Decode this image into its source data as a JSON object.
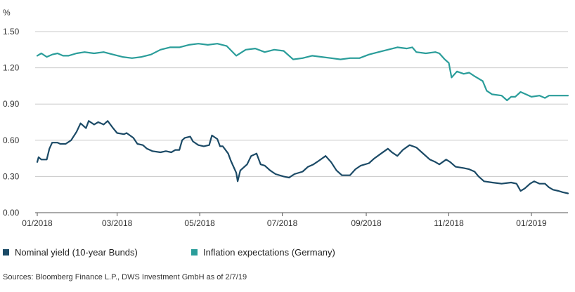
{
  "chart_data": {
    "type": "line",
    "unit_label": "%",
    "ylim": [
      0.0,
      1.5
    ],
    "y_ticks": [
      "0.00",
      "0.30",
      "0.60",
      "0.90",
      "1.20",
      "1.50"
    ],
    "y_tick_values": [
      0.0,
      0.3,
      0.6,
      0.9,
      1.2,
      1.5
    ],
    "xlim": [
      "2018-01-01",
      "2019-01-28"
    ],
    "x_ticks": [
      "01/2018",
      "03/2018",
      "05/2018",
      "07/2018",
      "09/2018",
      "11/2018",
      "01/2019"
    ],
    "x_tick_dates": [
      "2018-01-01",
      "2018-03-01",
      "2018-05-01",
      "2018-07-01",
      "2018-09-01",
      "2018-11-01",
      "2019-01-01"
    ],
    "grid": "horizontal",
    "legend_position": "bottom-left",
    "series": [
      {
        "name": "Nominal yield (10-year Bunds)",
        "color": "#1b4a66",
        "points": [
          [
            "2018-01-01",
            0.42
          ],
          [
            "2018-01-02",
            0.46
          ],
          [
            "2018-01-04",
            0.44
          ],
          [
            "2018-01-08",
            0.44
          ],
          [
            "2018-01-10",
            0.53
          ],
          [
            "2018-01-12",
            0.58
          ],
          [
            "2018-01-16",
            0.58
          ],
          [
            "2018-01-18",
            0.57
          ],
          [
            "2018-01-22",
            0.57
          ],
          [
            "2018-01-26",
            0.6
          ],
          [
            "2018-01-30",
            0.67
          ],
          [
            "2018-02-02",
            0.74
          ],
          [
            "2018-02-06",
            0.7
          ],
          [
            "2018-02-08",
            0.76
          ],
          [
            "2018-02-12",
            0.73
          ],
          [
            "2018-02-15",
            0.75
          ],
          [
            "2018-02-19",
            0.73
          ],
          [
            "2018-02-22",
            0.76
          ],
          [
            "2018-02-26",
            0.7
          ],
          [
            "2018-03-01",
            0.66
          ],
          [
            "2018-03-06",
            0.65
          ],
          [
            "2018-03-08",
            0.66
          ],
          [
            "2018-03-13",
            0.62
          ],
          [
            "2018-03-16",
            0.57
          ],
          [
            "2018-03-20",
            0.56
          ],
          [
            "2018-03-23",
            0.53
          ],
          [
            "2018-03-27",
            0.51
          ],
          [
            "2018-04-02",
            0.5
          ],
          [
            "2018-04-06",
            0.51
          ],
          [
            "2018-04-10",
            0.5
          ],
          [
            "2018-04-13",
            0.52
          ],
          [
            "2018-04-16",
            0.52
          ],
          [
            "2018-04-18",
            0.6
          ],
          [
            "2018-04-20",
            0.62
          ],
          [
            "2018-04-24",
            0.63
          ],
          [
            "2018-04-26",
            0.59
          ],
          [
            "2018-04-30",
            0.56
          ],
          [
            "2018-05-04",
            0.55
          ],
          [
            "2018-05-08",
            0.56
          ],
          [
            "2018-05-10",
            0.64
          ],
          [
            "2018-05-14",
            0.61
          ],
          [
            "2018-05-16",
            0.55
          ],
          [
            "2018-05-18",
            0.55
          ],
          [
            "2018-05-22",
            0.49
          ],
          [
            "2018-05-24",
            0.43
          ],
          [
            "2018-05-28",
            0.33
          ],
          [
            "2018-05-29",
            0.26
          ],
          [
            "2018-05-31",
            0.35
          ],
          [
            "2018-06-05",
            0.4
          ],
          [
            "2018-06-08",
            0.47
          ],
          [
            "2018-06-12",
            0.49
          ],
          [
            "2018-06-15",
            0.4
          ],
          [
            "2018-06-18",
            0.39
          ],
          [
            "2018-06-22",
            0.35
          ],
          [
            "2018-06-26",
            0.32
          ],
          [
            "2018-07-02",
            0.3
          ],
          [
            "2018-07-06",
            0.29
          ],
          [
            "2018-07-10",
            0.32
          ],
          [
            "2018-07-16",
            0.34
          ],
          [
            "2018-07-20",
            0.38
          ],
          [
            "2018-07-24",
            0.4
          ],
          [
            "2018-07-28",
            0.43
          ],
          [
            "2018-08-02",
            0.47
          ],
          [
            "2018-08-06",
            0.42
          ],
          [
            "2018-08-10",
            0.35
          ],
          [
            "2018-08-14",
            0.31
          ],
          [
            "2018-08-20",
            0.31
          ],
          [
            "2018-08-24",
            0.36
          ],
          [
            "2018-08-28",
            0.39
          ],
          [
            "2018-09-03",
            0.41
          ],
          [
            "2018-09-07",
            0.45
          ],
          [
            "2018-09-12",
            0.49
          ],
          [
            "2018-09-17",
            0.53
          ],
          [
            "2018-09-20",
            0.5
          ],
          [
            "2018-09-24",
            0.47
          ],
          [
            "2018-09-28",
            0.52
          ],
          [
            "2018-10-03",
            0.56
          ],
          [
            "2018-10-08",
            0.54
          ],
          [
            "2018-10-12",
            0.5
          ],
          [
            "2018-10-15",
            0.47
          ],
          [
            "2018-10-18",
            0.44
          ],
          [
            "2018-10-22",
            0.42
          ],
          [
            "2018-10-25",
            0.4
          ],
          [
            "2018-10-30",
            0.44
          ],
          [
            "2018-11-02",
            0.42
          ],
          [
            "2018-11-06",
            0.38
          ],
          [
            "2018-11-12",
            0.37
          ],
          [
            "2018-11-16",
            0.36
          ],
          [
            "2018-11-20",
            0.34
          ],
          [
            "2018-11-23",
            0.3
          ],
          [
            "2018-11-27",
            0.26
          ],
          [
            "2018-12-03",
            0.25
          ],
          [
            "2018-12-10",
            0.24
          ],
          [
            "2018-12-17",
            0.25
          ],
          [
            "2018-12-21",
            0.24
          ],
          [
            "2018-12-24",
            0.18
          ],
          [
            "2018-12-27",
            0.2
          ],
          [
            "2018-12-31",
            0.24
          ],
          [
            "2019-01-03",
            0.26
          ],
          [
            "2019-01-07",
            0.24
          ],
          [
            "2019-01-11",
            0.24
          ],
          [
            "2019-01-14",
            0.21
          ],
          [
            "2019-01-17",
            0.19
          ],
          [
            "2019-01-21",
            0.18
          ],
          [
            "2019-01-24",
            0.17
          ],
          [
            "2019-01-28",
            0.16
          ]
        ]
      },
      {
        "name": "Inflation expectations (Germany)",
        "color": "#2a9d9a",
        "points": [
          [
            "2018-01-01",
            1.3
          ],
          [
            "2018-01-04",
            1.32
          ],
          [
            "2018-01-08",
            1.29
          ],
          [
            "2018-01-12",
            1.31
          ],
          [
            "2018-01-16",
            1.32
          ],
          [
            "2018-01-20",
            1.3
          ],
          [
            "2018-01-24",
            1.3
          ],
          [
            "2018-01-30",
            1.32
          ],
          [
            "2018-02-05",
            1.33
          ],
          [
            "2018-02-12",
            1.32
          ],
          [
            "2018-02-19",
            1.33
          ],
          [
            "2018-02-26",
            1.31
          ],
          [
            "2018-03-05",
            1.29
          ],
          [
            "2018-03-12",
            1.28
          ],
          [
            "2018-03-19",
            1.29
          ],
          [
            "2018-03-26",
            1.31
          ],
          [
            "2018-04-02",
            1.35
          ],
          [
            "2018-04-09",
            1.37
          ],
          [
            "2018-04-16",
            1.37
          ],
          [
            "2018-04-23",
            1.39
          ],
          [
            "2018-04-30",
            1.4
          ],
          [
            "2018-05-07",
            1.39
          ],
          [
            "2018-05-14",
            1.4
          ],
          [
            "2018-05-21",
            1.38
          ],
          [
            "2018-05-28",
            1.3
          ],
          [
            "2018-06-04",
            1.35
          ],
          [
            "2018-06-11",
            1.36
          ],
          [
            "2018-06-18",
            1.33
          ],
          [
            "2018-06-25",
            1.35
          ],
          [
            "2018-07-02",
            1.34
          ],
          [
            "2018-07-09",
            1.27
          ],
          [
            "2018-07-16",
            1.28
          ],
          [
            "2018-07-23",
            1.3
          ],
          [
            "2018-07-30",
            1.29
          ],
          [
            "2018-08-06",
            1.28
          ],
          [
            "2018-08-13",
            1.27
          ],
          [
            "2018-08-20",
            1.28
          ],
          [
            "2018-08-27",
            1.28
          ],
          [
            "2018-09-03",
            1.31
          ],
          [
            "2018-09-10",
            1.33
          ],
          [
            "2018-09-17",
            1.35
          ],
          [
            "2018-09-24",
            1.37
          ],
          [
            "2018-10-01",
            1.36
          ],
          [
            "2018-10-05",
            1.37
          ],
          [
            "2018-10-08",
            1.33
          ],
          [
            "2018-10-15",
            1.32
          ],
          [
            "2018-10-22",
            1.33
          ],
          [
            "2018-10-25",
            1.32
          ],
          [
            "2018-10-29",
            1.27
          ],
          [
            "2018-11-01",
            1.24
          ],
          [
            "2018-11-03",
            1.12
          ],
          [
            "2018-11-07",
            1.17
          ],
          [
            "2018-11-12",
            1.15
          ],
          [
            "2018-11-16",
            1.16
          ],
          [
            "2018-11-20",
            1.13
          ],
          [
            "2018-11-26",
            1.09
          ],
          [
            "2018-11-29",
            1.01
          ],
          [
            "2018-12-03",
            0.98
          ],
          [
            "2018-12-10",
            0.97
          ],
          [
            "2018-12-14",
            0.93
          ],
          [
            "2018-12-17",
            0.96
          ],
          [
            "2018-12-20",
            0.96
          ],
          [
            "2018-12-24",
            1.0
          ],
          [
            "2018-12-28",
            0.98
          ],
          [
            "2019-01-01",
            0.96
          ],
          [
            "2019-01-07",
            0.97
          ],
          [
            "2019-01-11",
            0.95
          ],
          [
            "2019-01-14",
            0.97
          ],
          [
            "2019-01-21",
            0.97
          ],
          [
            "2019-01-28",
            0.97
          ]
        ]
      }
    ]
  },
  "legend": {
    "items": [
      {
        "label": "Nominal yield (10-year Bunds)",
        "color": "#1b4a66"
      },
      {
        "label": "Inflation expectations (Germany)",
        "color": "#2a9d9a"
      }
    ]
  },
  "source": "Sources: Bloomberg Finance L.P., DWS Investment GmbH as of 2/7/19"
}
